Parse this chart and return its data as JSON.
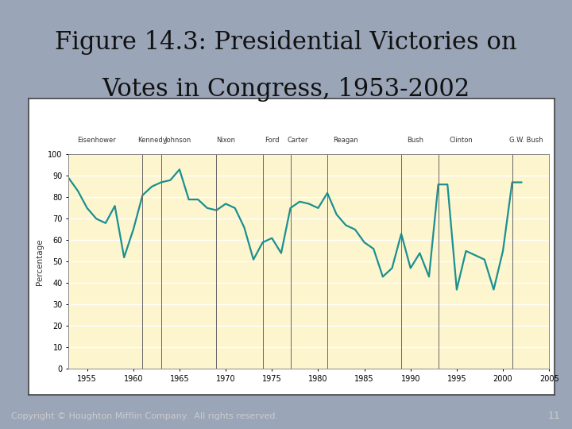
{
  "title_line1": "Figure 14.3: Presidential Victories on",
  "title_line2": "Votes in Congress, 1953-2002",
  "ylabel": "Percentage",
  "background_color": "#9aa5b8",
  "plot_bg_color": "#fdf5ce",
  "outer_box_color": "#f0f0f0",
  "line_color": "#1a9090",
  "line_width": 1.6,
  "footer_bg": "#4a5a78",
  "footer_text_color": "#cccccc",
  "ylim": [
    0,
    100
  ],
  "xlim": [
    1953,
    2005
  ],
  "yticks": [
    0,
    10,
    20,
    30,
    40,
    50,
    60,
    70,
    80,
    90,
    100
  ],
  "xticks": [
    1955,
    1960,
    1965,
    1970,
    1975,
    1980,
    1985,
    1990,
    1995,
    2000,
    2005
  ],
  "president_lines": [
    1961,
    1963,
    1969,
    1974,
    1977,
    1981,
    1989,
    1993,
    2001
  ],
  "president_labels": [
    [
      "Eisenhower",
      1956.0
    ],
    [
      "Kennedy",
      1962.0
    ],
    [
      "Johnson",
      1964.8
    ],
    [
      "Nixon",
      1970.0
    ],
    [
      "Ford",
      1975.0
    ],
    [
      "Carter",
      1977.8
    ],
    [
      "Reagan",
      1983.0
    ],
    [
      "Bush",
      1990.5
    ],
    [
      "Clinton",
      1995.5
    ],
    [
      "G.W. Bush",
      2002.5
    ]
  ],
  "years": [
    1953,
    1954,
    1955,
    1956,
    1957,
    1958,
    1959,
    1960,
    1961,
    1962,
    1963,
    1964,
    1965,
    1966,
    1967,
    1968,
    1969,
    1970,
    1971,
    1972,
    1973,
    1974,
    1975,
    1976,
    1977,
    1978,
    1979,
    1980,
    1981,
    1982,
    1983,
    1984,
    1985,
    1986,
    1987,
    1988,
    1989,
    1990,
    1991,
    1992,
    1993,
    1994,
    1995,
    1996,
    1997,
    1998,
    1999,
    2000,
    2001,
    2002
  ],
  "values": [
    89,
    83,
    75,
    70,
    68,
    76,
    52,
    65,
    81,
    85,
    87,
    88,
    93,
    79,
    79,
    75,
    74,
    77,
    75,
    66,
    51,
    59,
    61,
    54,
    75,
    78,
    77,
    75,
    82,
    72,
    67,
    65,
    59,
    56,
    43,
    47,
    63,
    47,
    54,
    43,
    86,
    86,
    37,
    55,
    53,
    51,
    37,
    55,
    87,
    87
  ]
}
